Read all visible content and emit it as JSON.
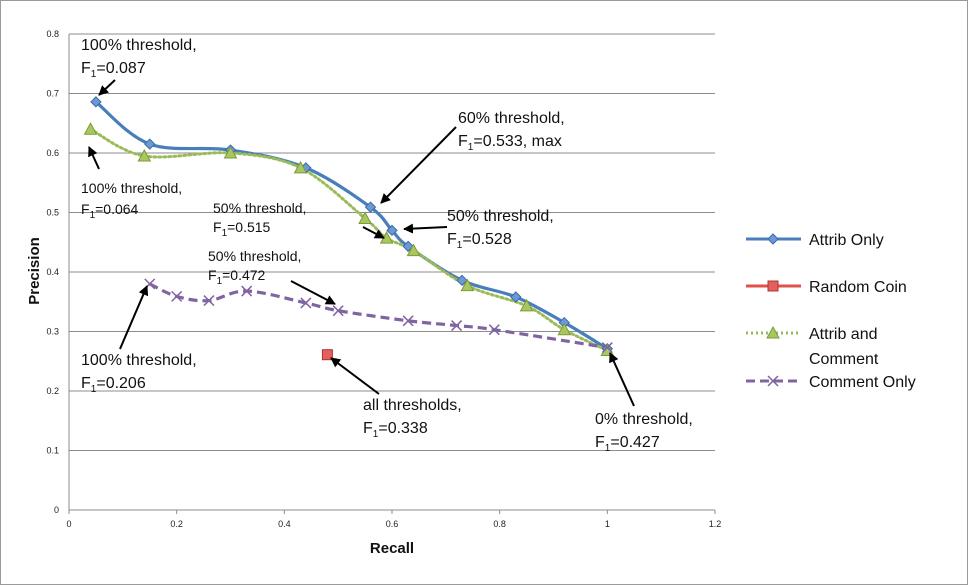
{
  "chart_data": {
    "type": "line",
    "xlabel": "Recall",
    "ylabel": "Precision",
    "xlim": [
      0,
      1.2
    ],
    "ylim": [
      0,
      0.8
    ],
    "x_ticks": [
      "0",
      "0.2",
      "0.4",
      "0.6",
      "0.8",
      "1",
      "1.2"
    ],
    "y_ticks": [
      "0",
      "0.1",
      "0.2",
      "0.3",
      "0.4",
      "0.5",
      "0.6",
      "0.7",
      "0.8"
    ],
    "grid": "horizontal",
    "legend_position": "right",
    "series": [
      {
        "name": "Attrib Only",
        "color": "#4a7ebb",
        "marker": "diamond",
        "line": "solid",
        "x": [
          0.05,
          0.15,
          0.3,
          0.44,
          0.56,
          0.6,
          0.63,
          0.73,
          0.83,
          0.92,
          1.0
        ],
        "y": [
          0.686,
          0.615,
          0.605,
          0.575,
          0.509,
          0.47,
          0.443,
          0.386,
          0.358,
          0.315,
          0.271
        ]
      },
      {
        "name": "Random Coin",
        "color": "#e0504d",
        "marker": "square",
        "line": "solid",
        "x": [
          0.48
        ],
        "y": [
          0.261
        ]
      },
      {
        "name": "Attrib and Comment",
        "label_lines": [
          "Attrib and",
          "Comment"
        ],
        "color": "#9bbb59",
        "marker": "triangle",
        "line": "dotted",
        "x": [
          0.04,
          0.14,
          0.3,
          0.43,
          0.55,
          0.59,
          0.64,
          0.74,
          0.85,
          0.92,
          1.0
        ],
        "y": [
          0.64,
          0.595,
          0.6,
          0.575,
          0.49,
          0.457,
          0.436,
          0.377,
          0.343,
          0.303,
          0.268
        ]
      },
      {
        "name": "Comment Only",
        "color": "#8064a2",
        "marker": "x",
        "line": "dashed",
        "x": [
          0.15,
          0.2,
          0.26,
          0.33,
          0.44,
          0.5,
          0.63,
          0.72,
          0.79,
          1.0
        ],
        "y": [
          0.38,
          0.359,
          0.352,
          0.368,
          0.348,
          0.335,
          0.318,
          0.31,
          0.303,
          0.273
        ]
      }
    ],
    "annotations": [
      {
        "id": "a1",
        "line1": "100% threshold,",
        "f1": "=0.087"
      },
      {
        "id": "a2",
        "line1": "100% threshold,",
        "f1": "=0.064"
      },
      {
        "id": "a3",
        "line1": "60% threshold,",
        "f1": "=0.533, max"
      },
      {
        "id": "a4",
        "line1": "50% threshold,",
        "f1": "=0.515"
      },
      {
        "id": "a5",
        "line1": "50% threshold,",
        "f1": "=0.528"
      },
      {
        "id": "a6",
        "line1": "50% threshold,",
        "f1": "=0.472"
      },
      {
        "id": "a7",
        "line1": "100% threshold,",
        "f1": "=0.206"
      },
      {
        "id": "a8",
        "line1": "all thresholds,",
        "f1": "=0.338"
      },
      {
        "id": "a9",
        "line1": "0% threshold,",
        "f1": "=0.427"
      }
    ],
    "f_letter": "F",
    "f_sub": "1"
  }
}
